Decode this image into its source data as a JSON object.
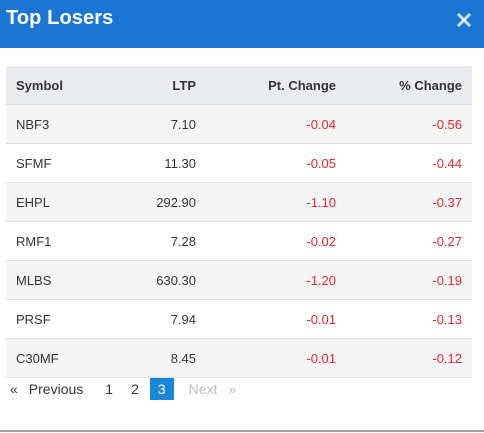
{
  "modal": {
    "title": "Top Losers",
    "close_icon": "close-icon"
  },
  "table": {
    "headers": [
      "Symbol",
      "LTP",
      "Pt. Change",
      "% Change"
    ],
    "rows": [
      {
        "symbol": "NBF3",
        "ltp": "7.10",
        "pt": "-0.04",
        "pct": "-0.56"
      },
      {
        "symbol": "SFMF",
        "ltp": "11.30",
        "pt": "-0.05",
        "pct": "-0.44"
      },
      {
        "symbol": "EHPL",
        "ltp": "292.90",
        "pt": "-1.10",
        "pct": "-0.37"
      },
      {
        "symbol": "RMF1",
        "ltp": "7.28",
        "pt": "-0.02",
        "pct": "-0.27"
      },
      {
        "symbol": "MLBS",
        "ltp": "630.30",
        "pt": "-1.20",
        "pct": "-0.19"
      },
      {
        "symbol": "PRSF",
        "ltp": "7.94",
        "pt": "-0.01",
        "pct": "-0.13"
      },
      {
        "symbol": "C30MF",
        "ltp": "8.45",
        "pt": "-0.01",
        "pct": "-0.12"
      }
    ]
  },
  "pagination": {
    "first_arrow": "«",
    "previous": "Previous",
    "pages": [
      "1",
      "2",
      "3"
    ],
    "current": "3",
    "next": "Next",
    "last_arrow": "»"
  },
  "colors": {
    "header_bg": "#1b76d3",
    "negative": "#e8262d",
    "active_page": "#1b87d9"
  }
}
